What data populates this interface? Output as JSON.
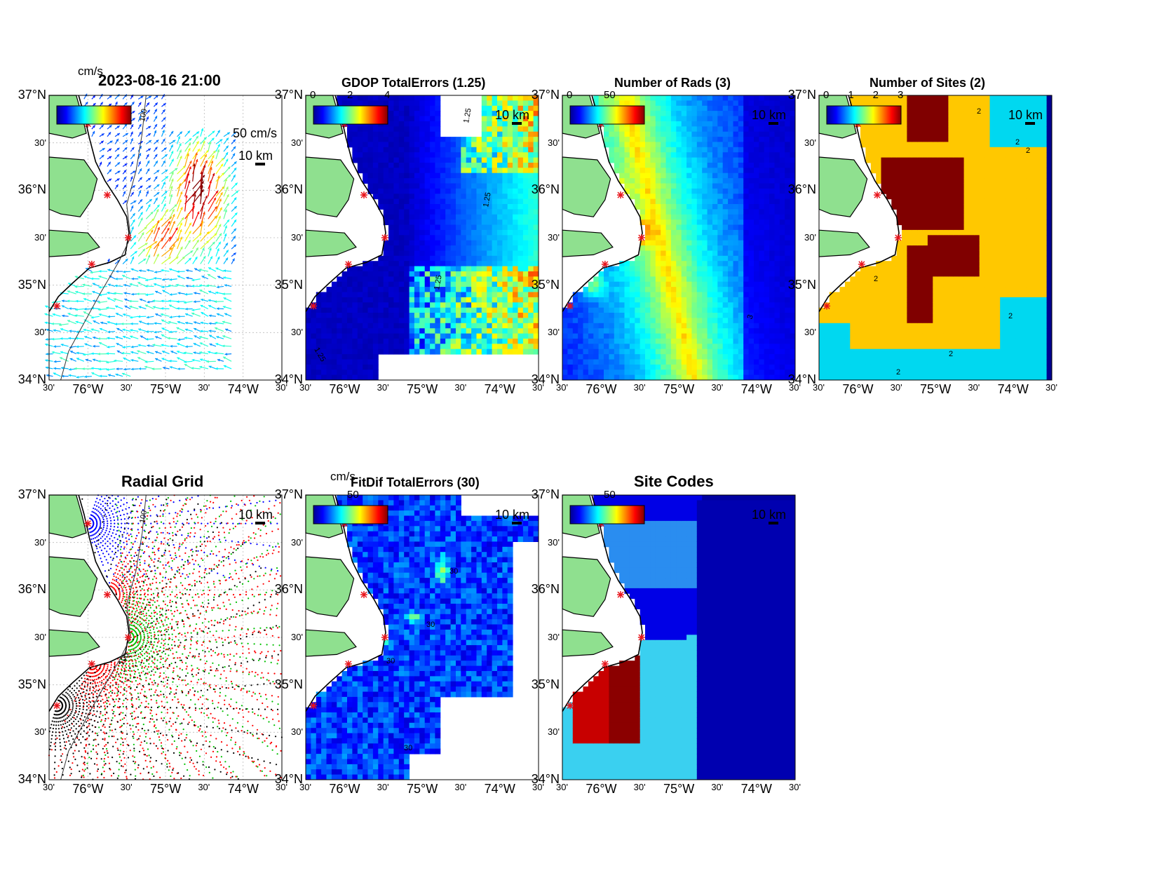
{
  "panels": [
    {
      "id": "p1",
      "title": "2023-08-16 21:00",
      "units": "cm/s",
      "ref_label": "50 cm/s",
      "scale": "10 km",
      "colorbar_ticks": [],
      "colorbar_range": [
        0,
        100
      ]
    },
    {
      "id": "p2",
      "title": "GDOP TotalErrors (1.25)",
      "units": "",
      "scale": "10 km",
      "colorbar_ticks": [
        "0",
        "2",
        "4"
      ],
      "colorbar_range": [
        0,
        4
      ]
    },
    {
      "id": "p3",
      "title": "Number of Rads (3)",
      "units": "",
      "scale": "10 km",
      "colorbar_ticks": [
        "0",
        "50"
      ],
      "colorbar_range": [
        0,
        100
      ]
    },
    {
      "id": "p4",
      "title": "Number of Sites (2)",
      "units": "",
      "scale": "10 km",
      "colorbar_ticks": [
        "0",
        "1",
        "2",
        "3"
      ],
      "colorbar_range": [
        0,
        3
      ]
    },
    {
      "id": "p5",
      "title": "Radial Grid",
      "units": "",
      "scale": "10 km",
      "colorbar_ticks": [],
      "colorbar_range": null
    },
    {
      "id": "p6",
      "title": "FitDif TotalErrors (30)",
      "units": "cm/s",
      "scale": "10 km",
      "colorbar_ticks": [
        "50"
      ],
      "colorbar_range": [
        0,
        100
      ]
    },
    {
      "id": "p7",
      "title": "Site Codes",
      "units": "",
      "scale": "10 km",
      "colorbar_ticks": [
        "50"
      ],
      "colorbar_range": [
        0,
        100
      ]
    }
  ],
  "axes": {
    "lat_main": [
      "37°N",
      "36°N",
      "35°N",
      "34°N"
    ],
    "lat_min": [
      "30'",
      "30'",
      "30'"
    ],
    "lon_main": [
      "76°W",
      "75°W",
      "74°W"
    ],
    "lon_min": [
      "30'",
      "30'",
      "30'",
      "30'"
    ]
  },
  "contour_labels": {
    "isobath": "100",
    "gdop": "1.25",
    "rads": "3",
    "sites": "2",
    "fitdif": "30"
  },
  "colors": {
    "land": "#8fe08f",
    "coast": "#000000",
    "site_marker": "#e8141b",
    "colormap": [
      "#00008f",
      "#0000ff",
      "#0080ff",
      "#00ffff",
      "#80ff80",
      "#ffff00",
      "#ff8000",
      "#ff0000",
      "#800000"
    ],
    "radial_sites": [
      "#0000ff",
      "#ff0000",
      "#00c000",
      "#ff0000",
      "#000000"
    ]
  },
  "site_count": 5
}
